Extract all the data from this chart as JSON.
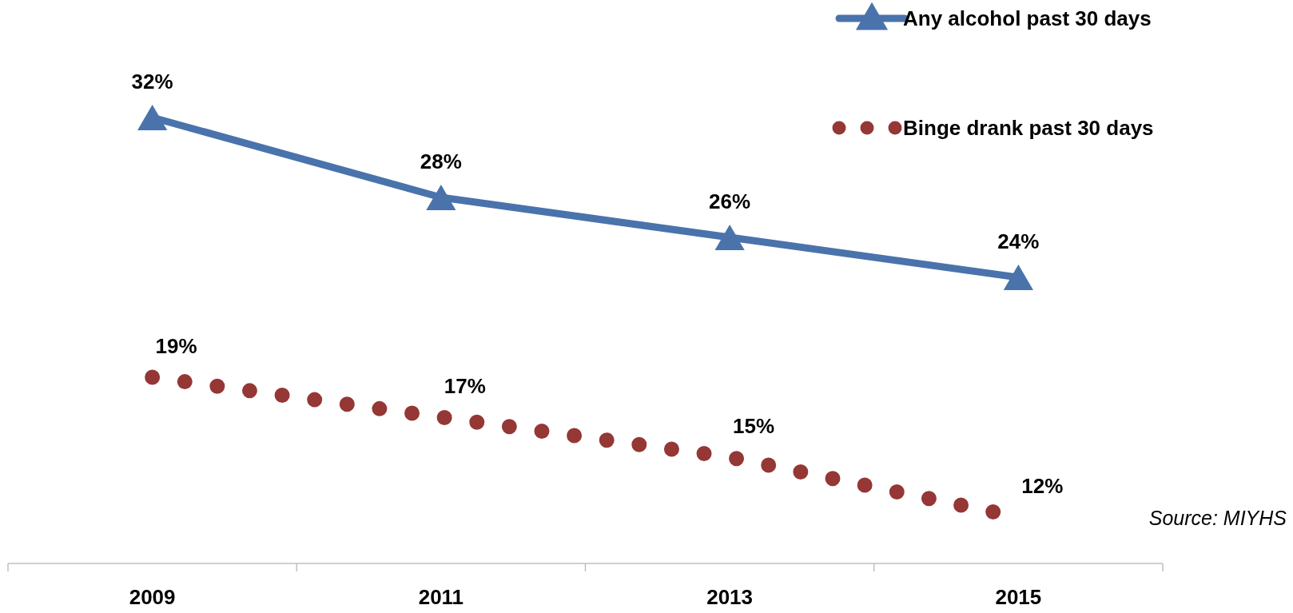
{
  "chart_data": {
    "type": "line",
    "categories": [
      "2009",
      "2011",
      "2013",
      "2015"
    ],
    "series": [
      {
        "name": "Any alcohol past 30 days",
        "color": "#4a73ac",
        "values": [
          32,
          28,
          26,
          24
        ],
        "value_labels": [
          "32%",
          "28%",
          "26%",
          "24%"
        ],
        "marker": "triangle",
        "line_style": "solid"
      },
      {
        "name": "Binge drank past 30 days",
        "color": "#953735",
        "values": [
          19,
          17,
          15,
          12
        ],
        "value_labels": [
          "19%",
          "17%",
          "15%",
          "12%"
        ],
        "marker": "none",
        "line_style": "dotted"
      }
    ],
    "legend": "top right",
    "annotations": [
      "Source: MIYHS"
    ]
  }
}
